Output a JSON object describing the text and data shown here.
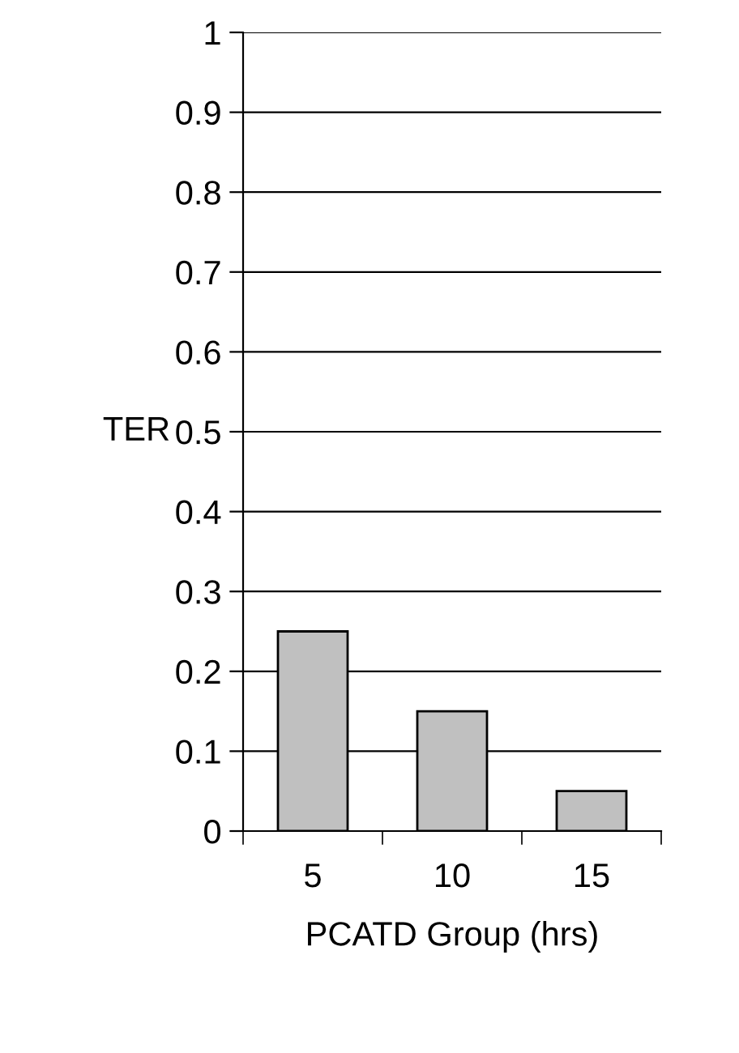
{
  "chart_data": {
    "type": "bar",
    "xlabel": "PCATD Group (hrs)",
    "ylabel": "TER",
    "categories": [
      "5",
      "10",
      "15"
    ],
    "series": [
      {
        "color": "#c0c0c0",
        "values": [
          0.25,
          0.15,
          0.05
        ]
      }
    ],
    "ylim": [
      0,
      1
    ],
    "yticks": [
      0,
      0.1,
      0.2,
      0.3,
      0.4,
      0.5,
      0.6,
      0.7,
      0.8,
      0.9,
      1
    ],
    "grid": "y"
  }
}
